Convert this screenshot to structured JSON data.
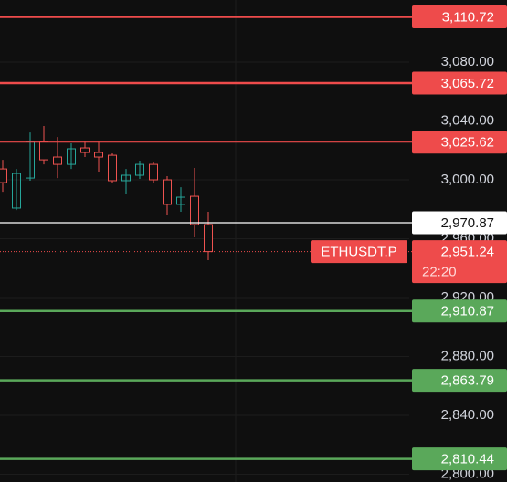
{
  "chart_data": {
    "type": "candlestick",
    "open": [
      3007.4,
      2980.8,
      3001.2,
      3026.0,
      3015.5,
      3010.5,
      3021.7,
      3018.6,
      3016.7,
      2999.4,
      3003.1,
      3010.5,
      3000.0,
      2983.3,
      2988.8,
      2969.6
    ],
    "high": [
      3013.6,
      3007.4,
      3032.2,
      3036.6,
      3029.1,
      3024.8,
      3026.0,
      3026.0,
      3018.0,
      3007.4,
      3013.0,
      3011.8,
      3002.5,
      2995.0,
      3008.1,
      2978.3
    ],
    "low": [
      2991.9,
      2979.5,
      2999.4,
      3010.5,
      3001.2,
      3007.4,
      3015.5,
      3005.6,
      2998.1,
      2990.7,
      3000.6,
      2998.1,
      2976.4,
      2978.3,
      2960.9,
      2945.4
    ],
    "close": [
      2998.1,
      3004.3,
      3026.0,
      3013.6,
      3010.5,
      3021.1,
      3018.6,
      3015.5,
      2999.4,
      3003.1,
      3010.5,
      3000.0,
      2983.3,
      2988.2,
      2969.6,
      2951.24
    ],
    "up_color": "#26a69a",
    "down_color": "#ef5350",
    "ylim": [
      2794.7,
      3122.2
    ],
    "yticks": [
      {
        "value": 3080,
        "label": "3,080.00"
      },
      {
        "value": 3040,
        "label": "3,040.00"
      },
      {
        "value": 3000,
        "label": "3,000.00"
      },
      {
        "value": 2960,
        "label": "2,960.00"
      },
      {
        "value": 2920,
        "label": "2,920.00"
      },
      {
        "value": 2880,
        "label": "2,880.00"
      },
      {
        "value": 2840,
        "label": "2,840.00"
      },
      {
        "value": 2800,
        "label": "2,800.00"
      }
    ],
    "grid": true,
    "price_lines": [
      {
        "value": 3110.72,
        "label": "3,110.72",
        "color": "#ee4b4b"
      },
      {
        "value": 3065.72,
        "label": "3,065.72",
        "color": "#ee4b4b"
      },
      {
        "value": 3025.62,
        "label": "3,025.62",
        "color": "#ee4b4b"
      },
      {
        "value": 2970.87,
        "label": "2,970.87",
        "color": "#ffffff"
      },
      {
        "value": 2910.87,
        "label": "2,910.87",
        "color": "#5aa85a"
      },
      {
        "value": 2863.79,
        "label": "2,863.79",
        "color": "#5aa85a"
      },
      {
        "value": 2810.44,
        "label": "2,810.44",
        "color": "#5aa85a"
      }
    ],
    "current_price": {
      "value": 2951.24,
      "label": "2,951.24",
      "symbol": "ETHUSDT.P",
      "countdown": "22:20",
      "color": "#ee4b4b"
    }
  }
}
